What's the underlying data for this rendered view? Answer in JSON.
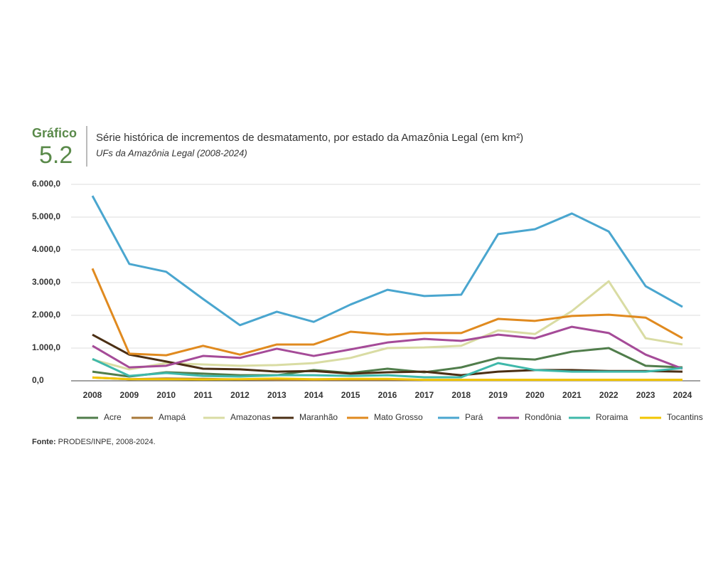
{
  "chart_data": {
    "type": "line",
    "label": "Gráfico",
    "number": "5.2",
    "title": "Série histórica de incrementos de desmatamento, por estado da Amazônia Legal (em km²)",
    "subtitle": "UFs da Amazônia Legal (2008-2024)",
    "source_label": "Fonte:",
    "source": "PRODES/INPE, 2008-2024.",
    "categories": [
      "2008",
      "2009",
      "2010",
      "2011",
      "2012",
      "2013",
      "2014",
      "2015",
      "2016",
      "2017",
      "2018",
      "2019",
      "2020",
      "2021",
      "2022",
      "2023",
      "2024"
    ],
    "ylim": [
      0,
      6000
    ],
    "yticks": [
      {
        "value": 0,
        "label": "0,0"
      },
      {
        "value": 1000,
        "label": "1.000,0"
      },
      {
        "value": 2000,
        "label": "2.000,0"
      },
      {
        "value": 3000,
        "label": "3.000,0"
      },
      {
        "value": 4000,
        "label": "4.000,0"
      },
      {
        "value": 5000,
        "label": "5.000,0"
      },
      {
        "value": 6000,
        "label": "6.000,0"
      }
    ],
    "grid": true,
    "legend": "bottom",
    "series": [
      {
        "name": "Acre",
        "color": "#507d4b",
        "values": [
          280,
          130,
          260,
          220,
          170,
          170,
          330,
          240,
          370,
          260,
          410,
          700,
          650,
          890,
          1000,
          460,
          410
        ]
      },
      {
        "name": "Amapá",
        "color": "#a8793a",
        "values": [
          100,
          50,
          70,
          60,
          40,
          30,
          30,
          30,
          30,
          30,
          30,
          30,
          30,
          30,
          30,
          30,
          30
        ]
      },
      {
        "name": "Amazonas",
        "color": "#d9dca3",
        "values": [
          650,
          350,
          540,
          500,
          460,
          480,
          540,
          700,
          1000,
          1020,
          1070,
          1540,
          1430,
          2130,
          3040,
          1300,
          1110
        ]
      },
      {
        "name": "Maranhão",
        "color": "#4b2f14",
        "values": [
          1410,
          800,
          590,
          370,
          350,
          280,
          300,
          220,
          260,
          280,
          170,
          280,
          330,
          330,
          300,
          300,
          280
        ]
      },
      {
        "name": "Mato Grosso",
        "color": "#e08a1f",
        "values": [
          3430,
          830,
          780,
          1070,
          800,
          1110,
          1110,
          1500,
          1410,
          1460,
          1460,
          1890,
          1830,
          1980,
          2020,
          1930,
          1300
        ]
      },
      {
        "name": "Pará",
        "color": "#4aa6cf",
        "values": [
          5650,
          3570,
          3330,
          2500,
          1700,
          2110,
          1800,
          2330,
          2780,
          2590,
          2630,
          4480,
          4630,
          5110,
          4560,
          2890,
          2260
        ]
      },
      {
        "name": "Rondônia",
        "color": "#a54b98",
        "values": [
          1070,
          410,
          460,
          760,
          700,
          980,
          760,
          960,
          1170,
          1280,
          1220,
          1410,
          1300,
          1650,
          1460,
          800,
          370
        ]
      },
      {
        "name": "Roraima",
        "color": "#3fb8aa",
        "values": [
          670,
          150,
          240,
          150,
          130,
          170,
          170,
          150,
          170,
          110,
          110,
          540,
          330,
          280,
          280,
          280,
          390
        ]
      },
      {
        "name": "Tocantins",
        "color": "#f2c500",
        "values": [
          100,
          50,
          50,
          40,
          50,
          70,
          50,
          60,
          60,
          30,
          30,
          30,
          30,
          30,
          30,
          30,
          30
        ]
      }
    ]
  }
}
